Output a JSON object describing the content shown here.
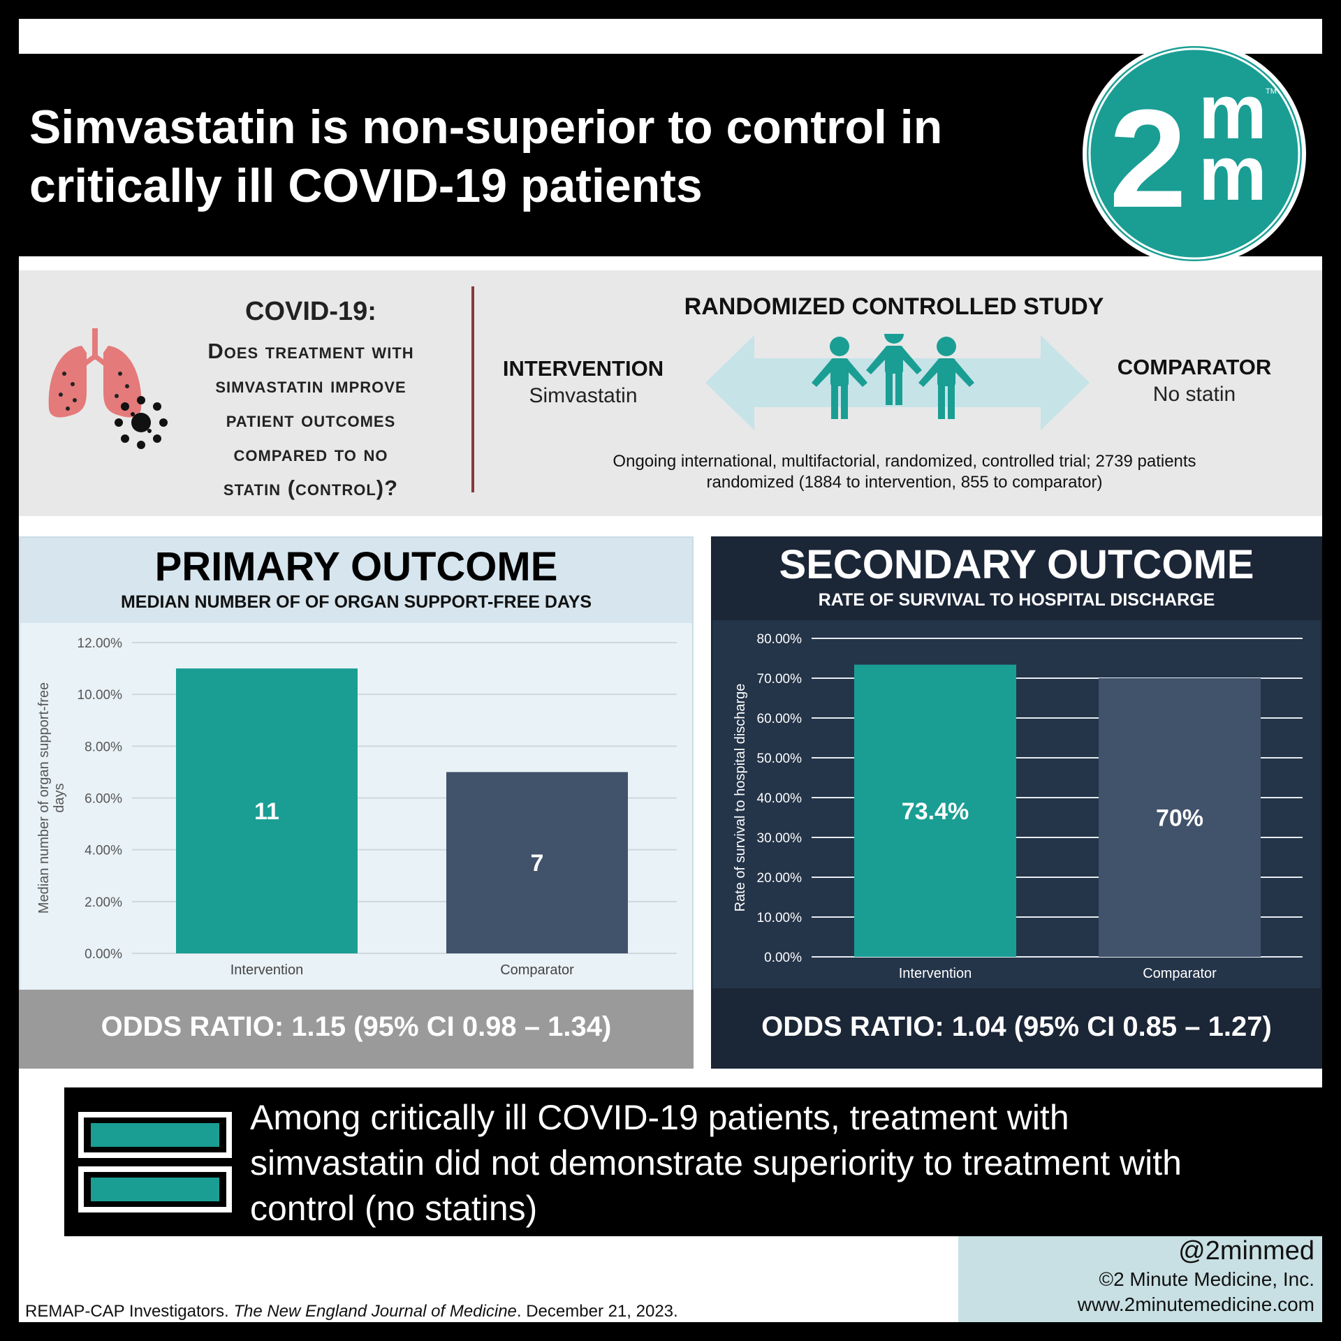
{
  "header": {
    "title_line1": "Simvastatin is non-superior to control in",
    "title_line2": "critically ill COVID-19 patients",
    "logo_text": "2m",
    "logo_text2": "m",
    "logo_tm": "TM"
  },
  "question": {
    "title": "COVID-19:",
    "line1": "Does treatment with",
    "line2": "simvastatin improve",
    "line3": "patient outcomes",
    "line4": "compared to no",
    "line5": "statin (control)?"
  },
  "study": {
    "title": "RANDOMIZED CONTROLLED STUDY",
    "intervention_label": "INTERVENTION",
    "intervention_value": "Simvastatin",
    "comparator_label": "COMPARATOR",
    "comparator_value": "No statin",
    "description_line1": "Ongoing international, multifactorial, randomized, controlled trial; 2739 patients",
    "description_line2": "randomized (1884 to intervention, 855 to comparator)"
  },
  "primary": {
    "title": "PRIMARY OUTCOME",
    "subtitle": "MEDIAN NUMBER OF OF ORGAN SUPPORT-FREE DAYS",
    "odds_ratio": "ODDS RATIO: 1.15 (95% CI 0.98 – 1.34)"
  },
  "secondary": {
    "title": "SECONDARY OUTCOME",
    "subtitle": "RATE OF SURVIVAL TO HOSPITAL DISCHARGE",
    "odds_ratio": "ODDS RATIO: 1.04 (95% CI 0.85 – 1.27)"
  },
  "chart_data": [
    {
      "type": "bar",
      "categories": [
        "Intervention",
        "Comparator"
      ],
      "values": [
        11,
        7
      ],
      "data_labels": [
        "11",
        "7"
      ],
      "ylabel": "Median number of organ support-free days",
      "ylim": [
        0,
        12
      ],
      "yticks": [
        "0.00%",
        "2.00%",
        "4.00%",
        "6.00%",
        "8.00%",
        "10.00%",
        "12.00%"
      ],
      "ytick_values": [
        0,
        2,
        4,
        6,
        8,
        10,
        12
      ],
      "colors": [
        "#1a9e94",
        "#41526b"
      ],
      "grid": true
    },
    {
      "type": "bar",
      "categories": [
        "Intervention",
        "Comparator"
      ],
      "values": [
        73.4,
        70
      ],
      "data_labels": [
        "73.4%",
        "70%"
      ],
      "ylabel": "Rate of survival to hospital discharge",
      "ylim": [
        0,
        80
      ],
      "yticks": [
        "0.00%",
        "10.00%",
        "20.00%",
        "30.00%",
        "40.00%",
        "50.00%",
        "60.00%",
        "70.00%",
        "80.00%"
      ],
      "ytick_values": [
        0,
        10,
        20,
        30,
        40,
        50,
        60,
        70,
        80
      ],
      "colors": [
        "#1a9e94",
        "#41526b"
      ],
      "grid": true
    }
  ],
  "conclusion": {
    "line1": "Among critically ill COVID-19 patients, treatment with",
    "line2": "simvastatin did not demonstrate superiority to treatment with",
    "line3": "control (no statins)"
  },
  "footer": {
    "handle": "@2minmed",
    "copyright": "©2 Minute Medicine, Inc.",
    "website": "www.2minutemedicine.com",
    "citation_authors": "REMAP-CAP Investigators. ",
    "citation_journal": "The New England Journal of Medicine",
    "citation_date": ". December 21, 2023."
  },
  "colors": {
    "teal": "#1a9e94",
    "slate": "#41526b",
    "navy": "#243449",
    "light_blue": "#e9f2f6"
  }
}
